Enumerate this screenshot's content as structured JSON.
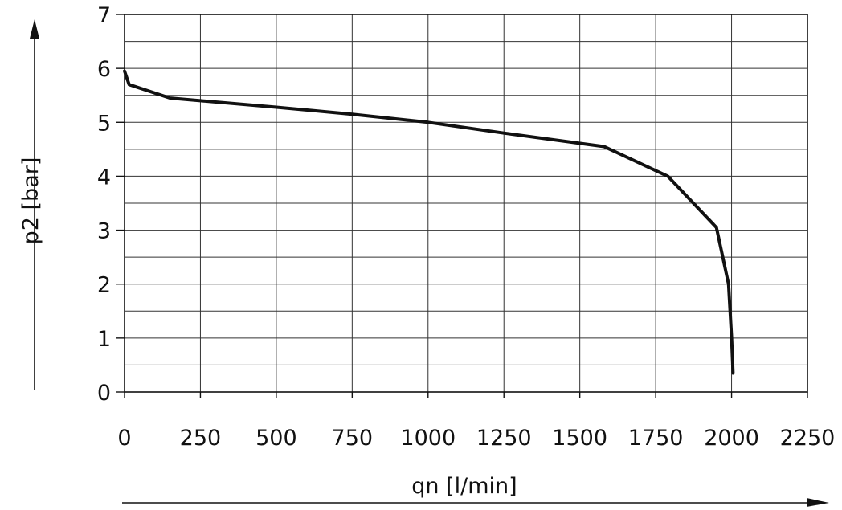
{
  "chart_data": {
    "type": "line",
    "xlabel": "qn [l/min]",
    "ylabel": "p2 [bar]",
    "xlim": [
      0,
      2250
    ],
    "ylim": [
      0,
      7
    ],
    "x_ticks": [
      0,
      250,
      500,
      750,
      1000,
      1250,
      1500,
      1750,
      2000,
      2250
    ],
    "x_tick_labels": [
      "0",
      "250",
      "500",
      "750",
      "1000",
      "1250",
      "1500",
      "1750",
      "2000",
      "2250"
    ],
    "y_ticks": [
      0,
      1,
      2,
      3,
      4,
      5,
      6,
      7
    ],
    "y_tick_labels": [
      "0",
      "1",
      "2",
      "3",
      "4",
      "5",
      "6",
      "7"
    ],
    "y_minor_step": 0.5,
    "grid": true,
    "line_color": "#111111",
    "series": [
      {
        "x": [
          0,
          15,
          150,
          250,
          500,
          750,
          1000,
          1250,
          1580,
          1790,
          1950,
          1990,
          2000,
          2005
        ],
        "y": [
          5.95,
          5.7,
          5.45,
          5.4,
          5.28,
          5.15,
          5.0,
          4.8,
          4.55,
          4.0,
          3.05,
          2.0,
          1.0,
          0.35
        ]
      }
    ]
  }
}
